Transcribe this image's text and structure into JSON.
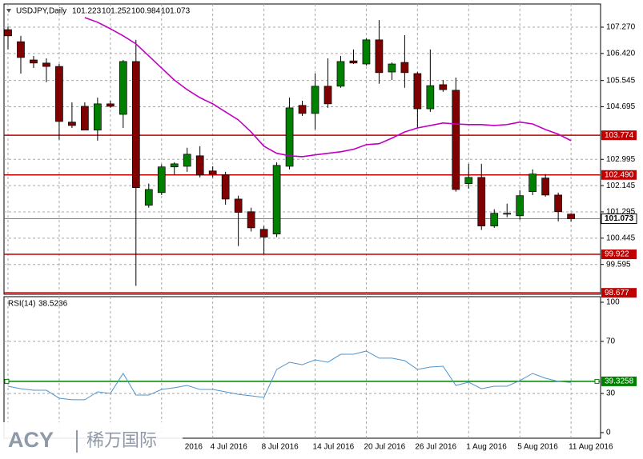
{
  "chart_data": [
    {
      "type": "candlestick",
      "symbol": "USDJPY,Daily",
      "categories": [
        null,
        null,
        null,
        null,
        null,
        null,
        null,
        null,
        null,
        null,
        null,
        null,
        null,
        null,
        "2016",
        null,
        "4 Jul 2016",
        null,
        null,
        null,
        "8 Jul 2016",
        null,
        null,
        null,
        "14 Jul 2016",
        null,
        null,
        null,
        "20 Jul 2016",
        null,
        null,
        null,
        "26 Jul 2016",
        null,
        null,
        null,
        "1 Aug 2016",
        null,
        null,
        null,
        "5 Aug 2016",
        null,
        null,
        null,
        "11 Aug 2016"
      ],
      "open": [
        107.19,
        106.8,
        106.21,
        106.11,
        106.0,
        104.2,
        104.71,
        103.94,
        104.79,
        104.45,
        106.16,
        101.51,
        101.92,
        102.75,
        102.77,
        103.11,
        102.62,
        102.49,
        101.71,
        101.3,
        100.73,
        100.58,
        102.77,
        104.74,
        104.48,
        105.36,
        105.36,
        106.18,
        106.08,
        106.86,
        105.82,
        106.13,
        105.77,
        104.63,
        105.41,
        105.23,
        102.21,
        102.41,
        100.84,
        101.22,
        101.17,
        101.95,
        102.39,
        101.84,
        101.223
      ],
      "high": [
        107.3,
        106.99,
        106.34,
        106.26,
        106.08,
        104.84,
        104.84,
        104.99,
        104.89,
        106.21,
        106.86,
        102.21,
        102.83,
        102.9,
        103.37,
        103.42,
        102.77,
        102.59,
        101.82,
        101.43,
        100.84,
        102.9,
        104.99,
        104.89,
        105.77,
        106.26,
        106.34,
        106.55,
        106.91,
        107.5,
        106.13,
        107.01,
        105.82,
        106.55,
        105.56,
        105.64,
        102.85,
        102.85,
        101.38,
        101.56,
        102.0,
        102.67,
        102.52,
        101.92,
        101.252
      ],
      "low": [
        106.55,
        105.77,
        105.95,
        105.49,
        103.63,
        104.01,
        103.94,
        103.6,
        104.66,
        104.01,
        98.9,
        101.43,
        101.84,
        102.49,
        102.59,
        102.41,
        102.41,
        101.53,
        100.19,
        100.66,
        99.93,
        100.48,
        102.67,
        104.4,
        103.96,
        104.66,
        105.31,
        106.08,
        106.03,
        105.44,
        105.56,
        105.31,
        104.01,
        104.53,
        105.18,
        101.95,
        102.05,
        100.71,
        100.78,
        101.12,
        101.04,
        101.84,
        101.79,
        100.99,
        100.984
      ],
      "close": [
        106.99,
        106.29,
        106.11,
        106.0,
        104.22,
        104.09,
        103.94,
        104.79,
        104.71,
        106.16,
        102.08,
        102.02,
        102.75,
        102.85,
        103.16,
        102.49,
        102.52,
        101.71,
        101.28,
        100.78,
        100.48,
        102.8,
        104.66,
        104.48,
        105.36,
        104.79,
        106.16,
        106.11,
        106.86,
        105.8,
        106.08,
        105.8,
        104.63,
        105.38,
        105.25,
        102.02,
        102.41,
        100.84,
        101.25,
        101.25,
        101.82,
        102.52,
        101.84,
        101.3,
        101.073
      ],
      "up_color": "#008000",
      "down_color": "#800000",
      "ma": {
        "color": "#c000c0",
        "values": [
          null,
          null,
          null,
          null,
          null,
          null,
          107.58,
          107.43,
          107.22,
          106.99,
          106.73,
          106.34,
          105.95,
          105.56,
          105.25,
          104.99,
          104.79,
          104.53,
          104.27,
          103.88,
          103.42,
          103.19,
          103.11,
          103.08,
          103.14,
          103.19,
          103.24,
          103.32,
          103.47,
          103.5,
          103.68,
          103.88,
          104.01,
          104.09,
          104.17,
          104.14,
          104.12,
          104.12,
          104.09,
          104.12,
          104.2,
          104.14,
          103.96,
          103.81,
          103.6
        ]
      },
      "levels": [
        103.774,
        {
          "value": 102.49,
          "label": "102.490"
        },
        99.922,
        98.677
      ],
      "level_color": "#c00000",
      "ylim": [
        98.63,
        108.02
      ],
      "yticks": [
        {
          "value": 107.27,
          "label": "107.270"
        },
        {
          "value": 106.42,
          "label": "106.420"
        },
        105.545,
        104.695,
        102.995,
        102.145,
        101.295,
        100.445,
        99.595
      ],
      "grid": true
    },
    {
      "type": "line",
      "title": "RSI(14)",
      "color": "#4f94cd",
      "values": [
        35.6,
        33.7,
        32.5,
        32.5,
        26.4,
        25.2,
        25.2,
        31.3,
        30.1,
        45.4,
        28.8,
        28.8,
        33.1,
        34.4,
        36.2,
        33.1,
        33.1,
        31.3,
        29.4,
        28.2,
        27.0,
        48.5,
        54.0,
        52.1,
        55.8,
        54.0,
        60.1,
        60.1,
        62.6,
        57.1,
        57.1,
        55.2,
        48.5,
        50.3,
        50.9,
        36.2,
        38.7,
        33.7,
        35.6,
        35.6,
        39.9,
        45.4,
        41.7,
        39.3,
        38.5236
      ],
      "levels": [
        39.3258
      ],
      "level_color": "#008000",
      "ylim": [
        0,
        100
      ],
      "yticks": [
        100,
        70,
        30,
        0
      ],
      "grid": true
    }
  ],
  "watermark": {
    "brand": "ACY",
    "name": "稀万国际"
  }
}
